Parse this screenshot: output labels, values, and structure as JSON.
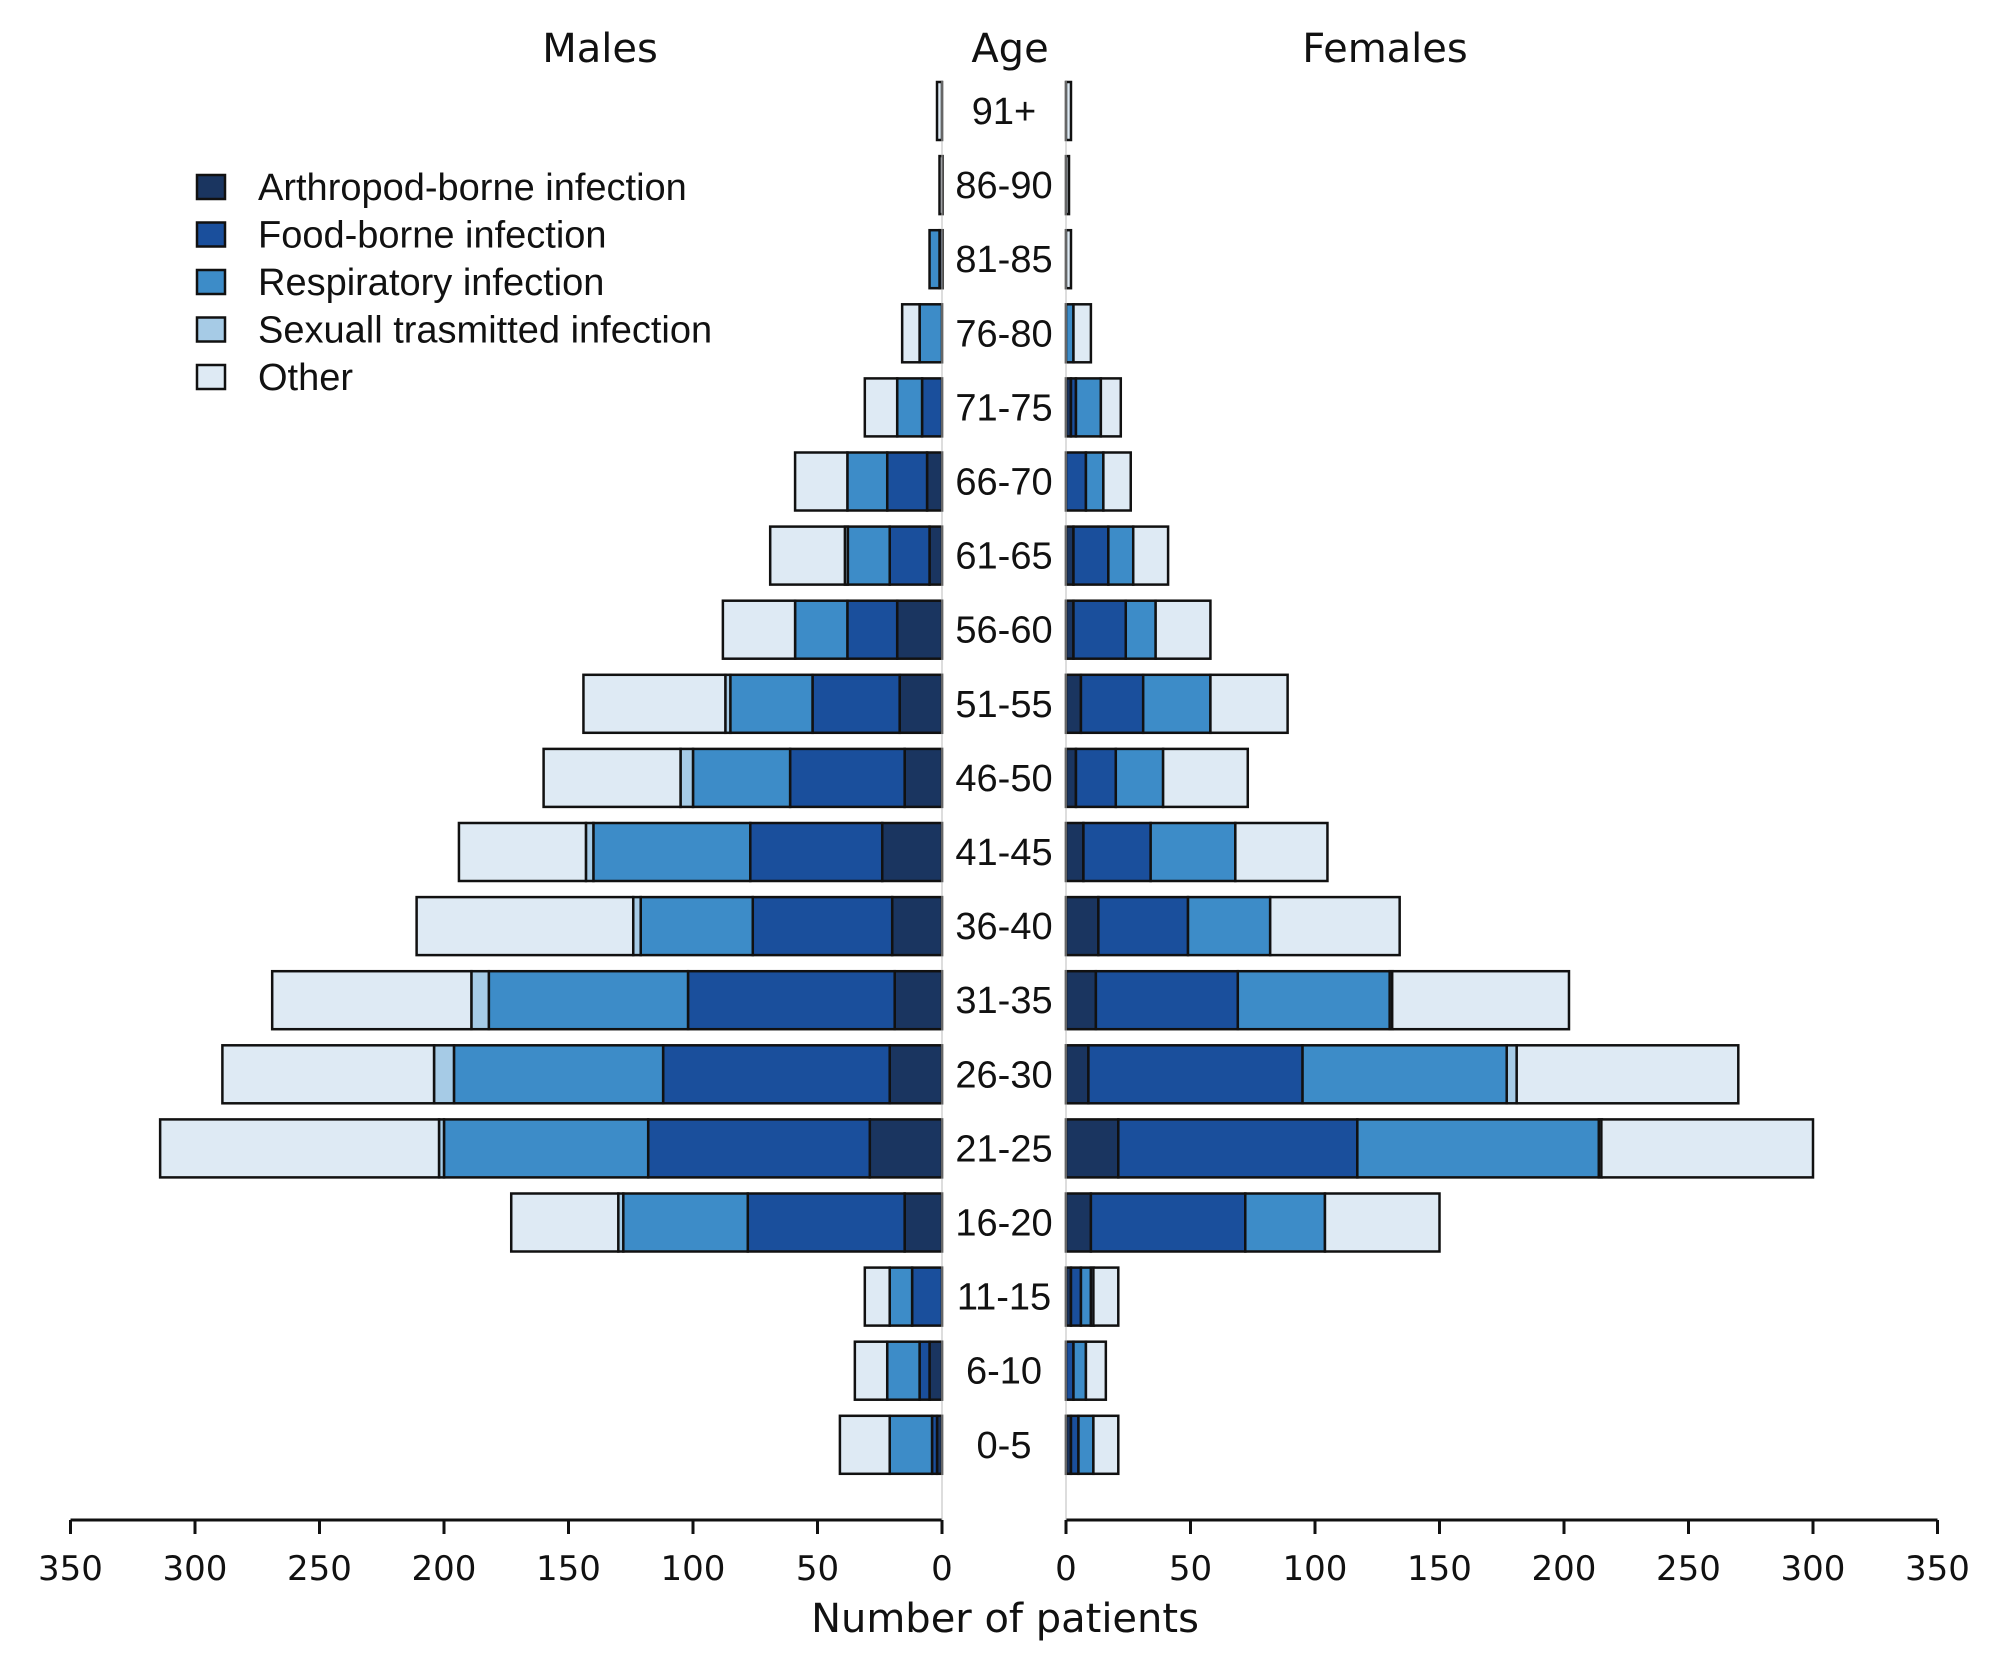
{
  "chart_data": {
    "type": "bar",
    "subtype": "population-pyramid-stacked",
    "header_left": "Males",
    "header_center": "Age",
    "header_right": "Females",
    "xlabel": "Number of patients",
    "xlim": [
      0,
      350
    ],
    "x_ticks": [
      0,
      50,
      100,
      150,
      200,
      250,
      300,
      350
    ],
    "categories": [
      "91+",
      "86-90",
      "81-85",
      "76-80",
      "71-75",
      "66-70",
      "61-65",
      "56-60",
      "51-55",
      "46-50",
      "41-45",
      "36-40",
      "31-35",
      "26-30",
      "21-25",
      "16-20",
      "11-15",
      "6-10",
      "0-5"
    ],
    "series": [
      {
        "name": "Arthropod-borne infection",
        "color": "#1a3560",
        "males": [
          0,
          0,
          1,
          0,
          0,
          6,
          5,
          18,
          17,
          15,
          24,
          20,
          19,
          21,
          29,
          15,
          0,
          5,
          2
        ],
        "females": [
          0,
          0,
          0,
          0,
          2,
          0,
          3,
          3,
          6,
          4,
          7,
          13,
          12,
          9,
          21,
          10,
          2,
          0,
          2
        ]
      },
      {
        "name": "Food-borne infection",
        "color": "#1a4f9c",
        "males": [
          0,
          0,
          0,
          0,
          8,
          16,
          16,
          20,
          35,
          46,
          53,
          56,
          83,
          91,
          89,
          63,
          12,
          4,
          2
        ],
        "females": [
          0,
          0,
          0,
          0,
          2,
          8,
          14,
          21,
          25,
          16,
          27,
          36,
          57,
          86,
          96,
          62,
          4,
          3,
          3
        ]
      },
      {
        "name": "Respiratory infection",
        "color": "#3d8cc8",
        "males": [
          0,
          0,
          4,
          9,
          10,
          16,
          17,
          21,
          33,
          39,
          63,
          45,
          80,
          84,
          82,
          50,
          9,
          13,
          17
        ],
        "females": [
          0,
          0,
          0,
          3,
          10,
          7,
          10,
          12,
          27,
          19,
          34,
          33,
          61,
          82,
          97,
          32,
          4,
          5,
          6
        ]
      },
      {
        "name": "Sexuall trasmitted infection",
        "color": "#a6cbe6",
        "males": [
          0,
          0,
          0,
          0,
          0,
          0,
          1,
          0,
          2,
          5,
          3,
          3,
          7,
          8,
          2,
          2,
          0,
          0,
          0
        ],
        "females": [
          0,
          0,
          0,
          0,
          0,
          0,
          0,
          0,
          0,
          0,
          0,
          0,
          1,
          4,
          1,
          0,
          1,
          0,
          0
        ]
      },
      {
        "name": "Other",
        "color": "#deeaf4",
        "males": [
          2,
          1,
          0,
          7,
          13,
          21,
          30,
          29,
          57,
          55,
          51,
          87,
          80,
          85,
          112,
          43,
          10,
          13,
          20
        ],
        "females": [
          2,
          1,
          2,
          7,
          8,
          11,
          14,
          22,
          31,
          34,
          37,
          52,
          71,
          89,
          85,
          46,
          10,
          8,
          10
        ]
      }
    ],
    "legend_position": "top-left",
    "grid": false
  }
}
